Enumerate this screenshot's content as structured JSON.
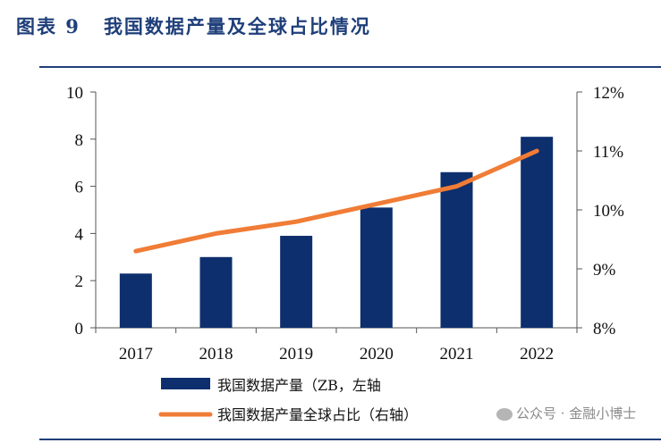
{
  "title": {
    "figure": "图表 9",
    "text": "我国数据产量及全球占比情况"
  },
  "watermark": "公众号 · 金融小博士",
  "colors": {
    "bar": "#0e2f6e",
    "line": "#f07c36",
    "rule": "#1f3f7a"
  },
  "chart_data": {
    "type": "bar",
    "categories": [
      "2017",
      "2018",
      "2019",
      "2020",
      "2021",
      "2022"
    ],
    "series": [
      {
        "name": "我国数据产量（ZB，左轴",
        "type": "bar",
        "axis": "left",
        "values": [
          2.3,
          3.0,
          3.9,
          5.1,
          6.6,
          8.1
        ]
      },
      {
        "name": "我国数据产量全球占比（右轴）",
        "type": "line",
        "axis": "right",
        "values": [
          9.3,
          9.6,
          9.8,
          10.1,
          10.4,
          11.0
        ]
      }
    ],
    "left_axis": {
      "min": 0,
      "max": 10,
      "ticks": [
        "0",
        "2",
        "4",
        "6",
        "8",
        "10"
      ],
      "values": [
        0,
        2,
        4,
        6,
        8,
        10
      ]
    },
    "right_axis": {
      "min": 8,
      "max": 12,
      "ticks": [
        "8%",
        "9%",
        "10%",
        "11%",
        "12%"
      ],
      "values": [
        8,
        9,
        10,
        11,
        12
      ]
    },
    "grid": false,
    "legend": "bottom"
  }
}
